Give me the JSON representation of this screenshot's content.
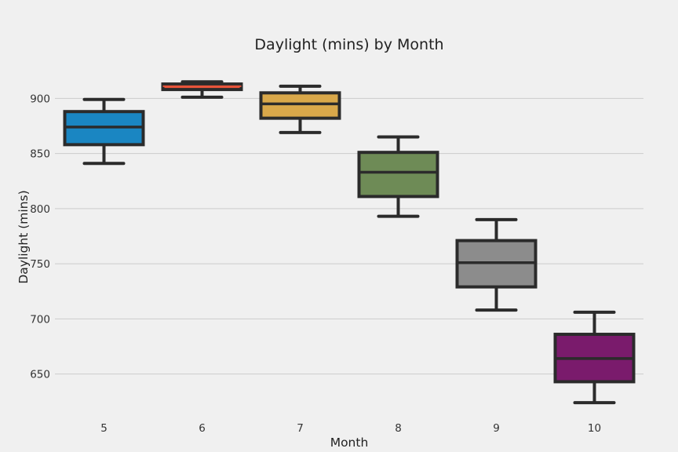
{
  "chart_data": {
    "type": "box",
    "title": "Daylight (mins) by Month",
    "xlabel": "Month",
    "ylabel": "Daylight (mins)",
    "ylim": [
      612,
      928
    ],
    "yticks": [
      650,
      700,
      750,
      800,
      850,
      900
    ],
    "grid": "horizontal",
    "categories": [
      "5",
      "6",
      "7",
      "8",
      "9",
      "10"
    ],
    "boxes": [
      {
        "category": "5",
        "whisker_low": 841,
        "q1": 858,
        "median": 874,
        "q3": 888,
        "whisker_high": 899,
        "color": "#1a86c2",
        "median_color": "#2b2b2b"
      },
      {
        "category": "6",
        "whisker_low": 901,
        "q1": 908,
        "median": 911,
        "q3": 913,
        "whisker_high": 915,
        "color": "#e8543a",
        "median_color": "#e8543a"
      },
      {
        "category": "7",
        "whisker_low": 869,
        "q1": 882,
        "median": 895,
        "q3": 905,
        "whisker_high": 911,
        "color": "#d9a84a",
        "median_color": "#2b2b2b"
      },
      {
        "category": "8",
        "whisker_low": 793,
        "q1": 811,
        "median": 833,
        "q3": 851,
        "whisker_high": 865,
        "color": "#6e8b56",
        "median_color": "#2b2b2b"
      },
      {
        "category": "9",
        "whisker_low": 708,
        "q1": 729,
        "median": 751,
        "q3": 771,
        "whisker_high": 790,
        "color": "#8c8c8c",
        "median_color": "#2b2b2b"
      },
      {
        "category": "10",
        "whisker_low": 624,
        "q1": 643,
        "median": 664,
        "q3": 686,
        "whisker_high": 706,
        "color": "#7a1b6c",
        "median_color": "#2b2b2b"
      }
    ]
  }
}
